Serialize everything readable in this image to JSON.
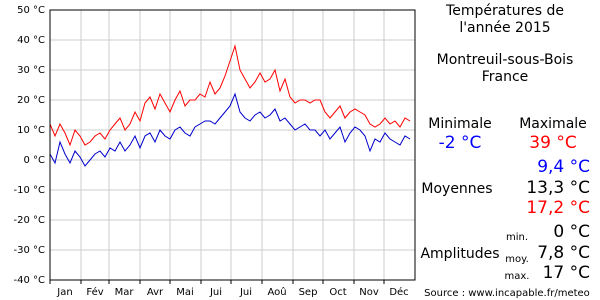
{
  "chart_data": {
    "type": "line",
    "x": [
      1,
      6,
      11,
      16,
      21,
      26,
      31,
      36,
      41,
      46,
      51,
      56,
      61,
      66,
      71,
      76,
      81,
      86,
      91,
      96,
      101,
      106,
      111,
      116,
      121,
      126,
      131,
      136,
      141,
      146,
      151,
      156,
      161,
      166,
      171,
      176,
      181,
      186,
      191,
      196,
      201,
      206,
      211,
      216,
      221,
      226,
      231,
      236,
      241,
      246,
      251,
      256,
      261,
      266,
      271,
      276,
      281,
      286,
      291,
      296,
      301,
      306,
      311,
      316,
      321,
      326,
      331,
      336,
      341,
      346,
      351,
      356,
      361
    ],
    "series": [
      {
        "name": "Maximale",
        "color": "#ff0000",
        "values": [
          12,
          8,
          12,
          9,
          5,
          10,
          8,
          5,
          6,
          8,
          9,
          7,
          10,
          12,
          14,
          10,
          12,
          16,
          13,
          19,
          21,
          17,
          22,
          19,
          16,
          20,
          23,
          18,
          20,
          20,
          22,
          21,
          26,
          22,
          24,
          28,
          33,
          38,
          30,
          27,
          24,
          26,
          29,
          26,
          27,
          30,
          23,
          27,
          21,
          19,
          20,
          20,
          19,
          20,
          20,
          16,
          14,
          16,
          18,
          14,
          16,
          17,
          16,
          15,
          12,
          11,
          12,
          14,
          12,
          13,
          11,
          14,
          13
        ]
      },
      {
        "name": "Minimale",
        "color": "#0000cc",
        "values": [
          2,
          -1,
          6,
          2,
          -1,
          3,
          1,
          -2,
          0,
          2,
          3,
          1,
          4,
          3,
          6,
          3,
          5,
          8,
          4,
          8,
          9,
          6,
          10,
          8,
          7,
          10,
          11,
          9,
          8,
          11,
          12,
          13,
          13,
          12,
          14,
          16,
          18,
          22,
          16,
          14,
          13,
          15,
          16,
          14,
          15,
          17,
          13,
          14,
          12,
          10,
          11,
          12,
          10,
          10,
          8,
          10,
          7,
          9,
          11,
          6,
          9,
          11,
          10,
          8,
          3,
          7,
          6,
          9,
          7,
          6,
          5,
          8,
          7
        ]
      }
    ],
    "xlim": [
      1,
      366
    ],
    "xticks": [
      {
        "value": 16,
        "label": "Jan"
      },
      {
        "value": 46,
        "label": "Fév"
      },
      {
        "value": 75,
        "label": "Mar"
      },
      {
        "value": 106,
        "label": "Avr"
      },
      {
        "value": 136,
        "label": "Mai"
      },
      {
        "value": 167,
        "label": "Jui"
      },
      {
        "value": 197,
        "label": "Jui"
      },
      {
        "value": 228,
        "label": "Aoû"
      },
      {
        "value": 259,
        "label": "Sep"
      },
      {
        "value": 289,
        "label": "Oct"
      },
      {
        "value": 320,
        "label": "Nov"
      },
      {
        "value": 350,
        "label": "Déc"
      }
    ],
    "xgrid": [
      1,
      32,
      60,
      91,
      121,
      152,
      182,
      213,
      244,
      274,
      305,
      335
    ],
    "ylim": [
      -40,
      50
    ],
    "yticks": [
      {
        "value": -40,
        "label": "-40 °C"
      },
      {
        "value": -30,
        "label": "-30 °C"
      },
      {
        "value": -20,
        "label": "-20 °C"
      },
      {
        "value": -10,
        "label": "-10 °C"
      },
      {
        "value": 0,
        "label": "0 °C"
      },
      {
        "value": 10,
        "label": "10 °C"
      },
      {
        "value": 20,
        "label": "20 °C"
      },
      {
        "value": 30,
        "label": "30 °C"
      },
      {
        "value": 40,
        "label": "40 °C"
      },
      {
        "value": 50,
        "label": "50 °C"
      }
    ],
    "grid": true
  },
  "panel": {
    "title": [
      "Températures de",
      "l'année 2015"
    ],
    "place": [
      "Montreuil-sous-Bois",
      "France"
    ],
    "min_label": "Minimale",
    "max_label": "Maximale",
    "min_value": "-2 °C",
    "max_value": "39 °C",
    "means_label": "Moyennes",
    "means": [
      "9,4 °C",
      "13,3 °C",
      "17,2 °C"
    ],
    "amp_label": "Amplitudes",
    "amp_keys": [
      "min.",
      "moy.",
      "max."
    ],
    "amps": [
      "0 °C",
      "7,8 °C",
      "17 °C"
    ],
    "source": "Source : www.incapable.fr/meteo"
  }
}
